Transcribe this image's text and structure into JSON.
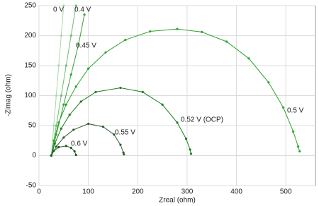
{
  "chart_data": {
    "type": "line",
    "x_label": "Zreal (ohm)",
    "y_label": "-Zimag (ohm)",
    "xlim": [
      0,
      560
    ],
    "ylim": [
      -50,
      250
    ],
    "xticks": [
      0,
      100,
      200,
      300,
      400,
      500
    ],
    "yticks": [
      -50,
      0,
      50,
      100,
      150,
      200,
      250
    ],
    "grid": true,
    "series": [
      {
        "name": "0 V",
        "color": "#a9d9a9",
        "x": [
          25,
          30,
          35,
          40,
          45,
          50
        ],
        "values": [
          0,
          50,
          100,
          150,
          200,
          250
        ]
      },
      {
        "name": "0.4 V",
        "color": "#6cc06c",
        "x": [
          25,
          35,
          45,
          55,
          65,
          75
        ],
        "values": [
          0,
          50,
          100,
          150,
          200,
          250
        ]
      },
      {
        "name": "0.45 V",
        "color": "#3a9e3a",
        "x": [
          25,
          35,
          50,
          65,
          80,
          92
        ],
        "values": [
          0,
          35,
          85,
          135,
          185,
          235
        ]
      },
      {
        "name": "0.5 V",
        "color": "#2ea32e",
        "x": [
          25,
          30,
          40,
          55,
          75,
          100,
          135,
          175,
          225,
          280,
          330,
          380,
          425,
          465,
          495,
          515,
          525,
          528
        ],
        "values": [
          0,
          25,
          55,
          85,
          115,
          145,
          172,
          193,
          207,
          211,
          206,
          190,
          162,
          122,
          80,
          40,
          15,
          7
        ]
      },
      {
        "name": "0.52 V (OCP)",
        "color": "#1f7d1f",
        "x": [
          25,
          32,
          45,
          62,
          85,
          115,
          165,
          210,
          250,
          280,
          298,
          306,
          308
        ],
        "values": [
          0,
          20,
          45,
          68,
          90,
          106,
          113,
          106,
          85,
          55,
          28,
          10,
          3
        ]
      },
      {
        "name": "0.55 V",
        "color": "#2f5f2f",
        "x": [
          25,
          35,
          50,
          70,
          100,
          130,
          152,
          165,
          171,
          172
        ],
        "values": [
          0,
          15,
          30,
          43,
          53,
          48,
          35,
          18,
          5,
          2
        ]
      },
      {
        "name": "0.6 V",
        "color": "#1b5c1b",
        "x": [
          25,
          30,
          40,
          55,
          65,
          72,
          75
        ],
        "values": [
          0,
          8,
          14,
          16,
          13,
          7,
          1
        ]
      }
    ]
  }
}
